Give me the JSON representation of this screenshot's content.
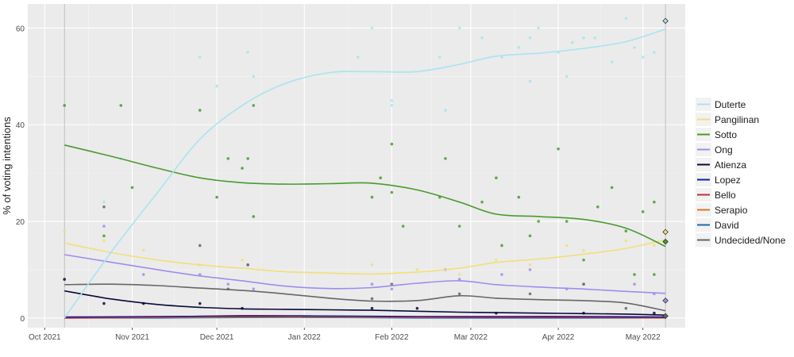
{
  "chart_data": {
    "type": "line",
    "title": "",
    "xlabel": "",
    "ylabel": "% of voting intentions",
    "ylim": [
      -2,
      65
    ],
    "y_ticks": [
      0,
      20,
      40,
      60
    ],
    "x_ticks": [
      {
        "label": "Oct 2021",
        "date": "2021-10-01"
      },
      {
        "label": "Nov 2021",
        "date": "2021-11-01"
      },
      {
        "label": "Dec 2021",
        "date": "2021-12-01"
      },
      {
        "label": "Jan 2022",
        "date": "2022-01-01"
      },
      {
        "label": "Feb 2022",
        "date": "2022-02-01"
      },
      {
        "label": "Mar 2022",
        "date": "2022-03-01"
      },
      {
        "label": "Apr 2022",
        "date": "2022-04-01"
      },
      {
        "label": "May 2022",
        "date": "2022-05-01"
      }
    ],
    "xlim": [
      "2021-09-25",
      "2022-05-16"
    ],
    "vlines": [
      "2021-10-08",
      "2022-05-09"
    ],
    "grid": true,
    "legend_position": "right",
    "series": [
      {
        "name": "Duterte",
        "color": "#a8e4f0",
        "x": [
          "2021-10-08",
          "2021-10-25",
          "2021-11-10",
          "2021-11-25",
          "2021-12-10",
          "2021-12-25",
          "2022-01-10",
          "2022-01-25",
          "2022-02-10",
          "2022-02-25",
          "2022-03-10",
          "2022-03-25",
          "2022-04-10",
          "2022-04-25",
          "2022-05-09"
        ],
        "y": [
          0,
          14,
          26,
          37,
          44,
          48.5,
          50.8,
          51,
          51,
          52.5,
          54.2,
          54.8,
          55.8,
          57.2,
          59.8
        ],
        "points": [
          [
            "2021-10-08",
            44
          ],
          [
            "2021-10-22",
            24
          ],
          [
            "2021-10-28",
            33
          ],
          [
            "2021-11-25",
            54
          ],
          [
            "2021-12-01",
            48
          ],
          [
            "2021-12-12",
            55
          ],
          [
            "2021-12-14",
            50
          ],
          [
            "2022-01-20",
            54
          ],
          [
            "2022-01-25",
            60
          ],
          [
            "2022-02-01",
            45
          ],
          [
            "2022-02-01",
            44
          ],
          [
            "2022-02-18",
            54
          ],
          [
            "2022-02-20",
            43
          ],
          [
            "2022-02-25",
            60
          ],
          [
            "2022-03-05",
            58
          ],
          [
            "2022-03-12",
            54
          ],
          [
            "2022-03-18",
            56
          ],
          [
            "2022-03-22",
            58
          ],
          [
            "2022-03-22",
            49
          ],
          [
            "2022-03-25",
            60
          ],
          [
            "2022-04-01",
            55
          ],
          [
            "2022-04-04",
            50
          ],
          [
            "2022-04-06",
            57
          ],
          [
            "2022-04-10",
            58
          ],
          [
            "2022-04-14",
            58
          ],
          [
            "2022-04-20",
            53
          ],
          [
            "2022-04-25",
            62
          ],
          [
            "2022-04-28",
            56
          ],
          [
            "2022-05-01",
            54
          ],
          [
            "2022-05-05",
            55
          ]
        ]
      },
      {
        "name": "Pangilinan",
        "color": "#f0e07a",
        "x": [
          "2021-10-08",
          "2021-10-25",
          "2021-11-10",
          "2021-11-25",
          "2021-12-10",
          "2021-12-25",
          "2022-01-10",
          "2022-01-25",
          "2022-02-10",
          "2022-02-25",
          "2022-03-10",
          "2022-03-25",
          "2022-04-10",
          "2022-04-25",
          "2022-05-09"
        ],
        "y": [
          15.5,
          13.5,
          12,
          11,
          10.3,
          9.6,
          9.3,
          9.1,
          9.5,
          10.3,
          11.5,
          12.2,
          13.2,
          14.4,
          16.2
        ],
        "points": [
          [
            "2021-10-08",
            18
          ],
          [
            "2021-10-22",
            16
          ],
          [
            "2021-11-05",
            14
          ],
          [
            "2021-11-25",
            11
          ],
          [
            "2021-12-10",
            12
          ],
          [
            "2022-01-25",
            11
          ],
          [
            "2022-02-10",
            10
          ],
          [
            "2022-02-25",
            9
          ],
          [
            "2022-03-10",
            12
          ],
          [
            "2022-03-22",
            11
          ],
          [
            "2022-04-04",
            15
          ],
          [
            "2022-04-10",
            14
          ],
          [
            "2022-04-25",
            16
          ],
          [
            "2022-05-05",
            15
          ]
        ]
      },
      {
        "name": "Sotto",
        "color": "#4a9a2e",
        "x": [
          "2021-10-08",
          "2021-10-25",
          "2021-11-10",
          "2021-11-25",
          "2021-12-10",
          "2021-12-25",
          "2022-01-10",
          "2022-01-25",
          "2022-02-10",
          "2022-02-25",
          "2022-03-10",
          "2022-03-25",
          "2022-04-10",
          "2022-04-25",
          "2022-05-09"
        ],
        "y": [
          35.8,
          33.4,
          31,
          29,
          28,
          27.7,
          27.8,
          27.9,
          26.5,
          24,
          21.5,
          21,
          20.4,
          18.6,
          14.8
        ],
        "points": [
          [
            "2021-10-08",
            44
          ],
          [
            "2021-10-22",
            17
          ],
          [
            "2021-10-28",
            44
          ],
          [
            "2021-11-01",
            27
          ],
          [
            "2021-11-25",
            43
          ],
          [
            "2021-12-01",
            25
          ],
          [
            "2021-12-05",
            33
          ],
          [
            "2021-12-10",
            31
          ],
          [
            "2021-12-12",
            33
          ],
          [
            "2021-12-14",
            44
          ],
          [
            "2021-12-14",
            21
          ],
          [
            "2022-01-25",
            25
          ],
          [
            "2022-01-28",
            29
          ],
          [
            "2022-02-01",
            36
          ],
          [
            "2022-02-01",
            26
          ],
          [
            "2022-02-05",
            19
          ],
          [
            "2022-02-18",
            25
          ],
          [
            "2022-02-20",
            33
          ],
          [
            "2022-02-25",
            19
          ],
          [
            "2022-03-05",
            24
          ],
          [
            "2022-03-10",
            29
          ],
          [
            "2022-03-12",
            15
          ],
          [
            "2022-03-18",
            25
          ],
          [
            "2022-03-22",
            17
          ],
          [
            "2022-03-25",
            20
          ],
          [
            "2022-04-01",
            35
          ],
          [
            "2022-04-04",
            20
          ],
          [
            "2022-04-10",
            12
          ],
          [
            "2022-04-15",
            23
          ],
          [
            "2022-04-20",
            27
          ],
          [
            "2022-04-25",
            18
          ],
          [
            "2022-04-28",
            9
          ],
          [
            "2022-05-01",
            22
          ],
          [
            "2022-05-05",
            9
          ],
          [
            "2022-05-05",
            24
          ]
        ]
      },
      {
        "name": "Ong",
        "color": "#a08cec",
        "x": [
          "2021-10-08",
          "2021-10-25",
          "2021-11-10",
          "2021-11-25",
          "2021-12-10",
          "2021-12-25",
          "2022-01-10",
          "2022-01-25",
          "2022-02-10",
          "2022-02-25",
          "2022-03-10",
          "2022-03-25",
          "2022-04-10",
          "2022-04-25",
          "2022-05-09"
        ],
        "y": [
          13.1,
          11.5,
          10,
          8.7,
          7.7,
          6.6,
          6.1,
          6.3,
          7.2,
          7.7,
          6.9,
          6.4,
          6,
          5.5,
          5.1
        ],
        "points": [
          [
            "2021-10-22",
            19
          ],
          [
            "2021-11-05",
            9
          ],
          [
            "2021-11-25",
            9
          ],
          [
            "2021-12-05",
            7
          ],
          [
            "2021-12-12",
            11
          ],
          [
            "2021-12-14",
            6
          ],
          [
            "2022-01-25",
            7
          ],
          [
            "2022-02-01",
            6
          ],
          [
            "2022-02-20",
            10
          ],
          [
            "2022-02-25",
            8
          ],
          [
            "2022-03-12",
            9
          ],
          [
            "2022-03-22",
            10
          ],
          [
            "2022-04-04",
            6
          ],
          [
            "2022-04-10",
            7
          ],
          [
            "2022-04-28",
            7
          ],
          [
            "2022-05-05",
            5
          ]
        ]
      },
      {
        "name": "Atienza",
        "color": "#0a0a3a",
        "x": [
          "2021-10-08",
          "2021-10-25",
          "2021-11-10",
          "2021-11-25",
          "2021-12-10",
          "2021-12-25",
          "2022-01-10",
          "2022-01-25",
          "2022-02-10",
          "2022-02-25",
          "2022-03-10",
          "2022-03-25",
          "2022-04-10",
          "2022-04-25",
          "2022-05-09"
        ],
        "y": [
          5.6,
          3.9,
          2.8,
          2.2,
          1.9,
          1.8,
          1.7,
          1.6,
          1.4,
          1.2,
          1.1,
          1.0,
          0.9,
          0.8,
          0.6
        ],
        "points": [
          [
            "2021-10-08",
            8
          ],
          [
            "2021-10-22",
            3
          ],
          [
            "2021-11-05",
            3
          ],
          [
            "2021-11-25",
            3
          ],
          [
            "2021-12-10",
            2
          ],
          [
            "2022-01-25",
            2
          ],
          [
            "2022-02-10",
            2
          ],
          [
            "2022-03-10",
            1
          ],
          [
            "2022-04-10",
            1
          ],
          [
            "2022-05-05",
            1
          ]
        ]
      },
      {
        "name": "Lopez",
        "color": "#1a1aa0",
        "x": [
          "2021-10-08",
          "2021-11-10",
          "2021-12-10",
          "2022-01-10",
          "2022-02-10",
          "2022-03-10",
          "2022-04-10",
          "2022-05-09"
        ],
        "y": [
          0.2,
          0.3,
          0.4,
          0.4,
          0.3,
          0.3,
          0.3,
          0.2
        ],
        "points": []
      },
      {
        "name": "Bello",
        "color": "#c03030",
        "x": [
          "2021-10-08",
          "2021-11-10",
          "2021-12-10",
          "2022-01-10",
          "2022-02-10",
          "2022-03-10",
          "2022-04-10",
          "2022-05-09"
        ],
        "y": [
          0,
          0.2,
          0.5,
          0.4,
          0.2,
          0.1,
          0.1,
          0.1
        ],
        "points": []
      },
      {
        "name": "Serapio",
        "color": "#d8782a",
        "x": [
          "2021-10-08",
          "2021-11-10",
          "2021-12-10",
          "2022-01-10",
          "2022-02-10",
          "2022-03-10",
          "2022-04-10",
          "2022-05-09"
        ],
        "y": [
          0,
          0.1,
          0.2,
          0.2,
          0.1,
          0.1,
          0.1,
          0
        ],
        "points": []
      },
      {
        "name": "David",
        "color": "#1c6aa0",
        "x": [
          "2021-10-08",
          "2021-11-10",
          "2021-12-10",
          "2022-01-10",
          "2022-02-10",
          "2022-03-10",
          "2022-04-10",
          "2022-05-09"
        ],
        "y": [
          0,
          0,
          0.1,
          0.1,
          0,
          0,
          0,
          0
        ],
        "points": []
      },
      {
        "name": "Undecided/None",
        "color": "#666666",
        "x": [
          "2021-10-08",
          "2021-10-25",
          "2021-11-10",
          "2021-11-25",
          "2021-12-10",
          "2021-12-25",
          "2022-01-10",
          "2022-01-25",
          "2022-02-10",
          "2022-02-25",
          "2022-03-10",
          "2022-03-25",
          "2022-04-10",
          "2022-04-25",
          "2022-05-09"
        ],
        "y": [
          6.9,
          7,
          6.7,
          6.2,
          5.7,
          5.0,
          4.1,
          3.5,
          3.6,
          4.6,
          4.1,
          3.8,
          3.6,
          3.1,
          1.5
        ],
        "points": [
          [
            "2021-10-22",
            23
          ],
          [
            "2021-11-25",
            15
          ],
          [
            "2021-12-05",
            6
          ],
          [
            "2021-12-12",
            11
          ],
          [
            "2022-01-25",
            4
          ],
          [
            "2022-02-01",
            7
          ],
          [
            "2022-02-25",
            5
          ],
          [
            "2022-03-22",
            5
          ],
          [
            "2022-04-10",
            7
          ],
          [
            "2022-04-25",
            2
          ]
        ]
      }
    ],
    "final_markers": [
      {
        "series": "Duterte",
        "value": 61.5
      },
      {
        "series": "Pangilinan",
        "value": 17.8
      },
      {
        "series": "Sotto",
        "value": 15.8
      },
      {
        "series": "Ong",
        "value": 3.6
      },
      {
        "series": "Undecided/None",
        "value": 0.4
      }
    ]
  }
}
